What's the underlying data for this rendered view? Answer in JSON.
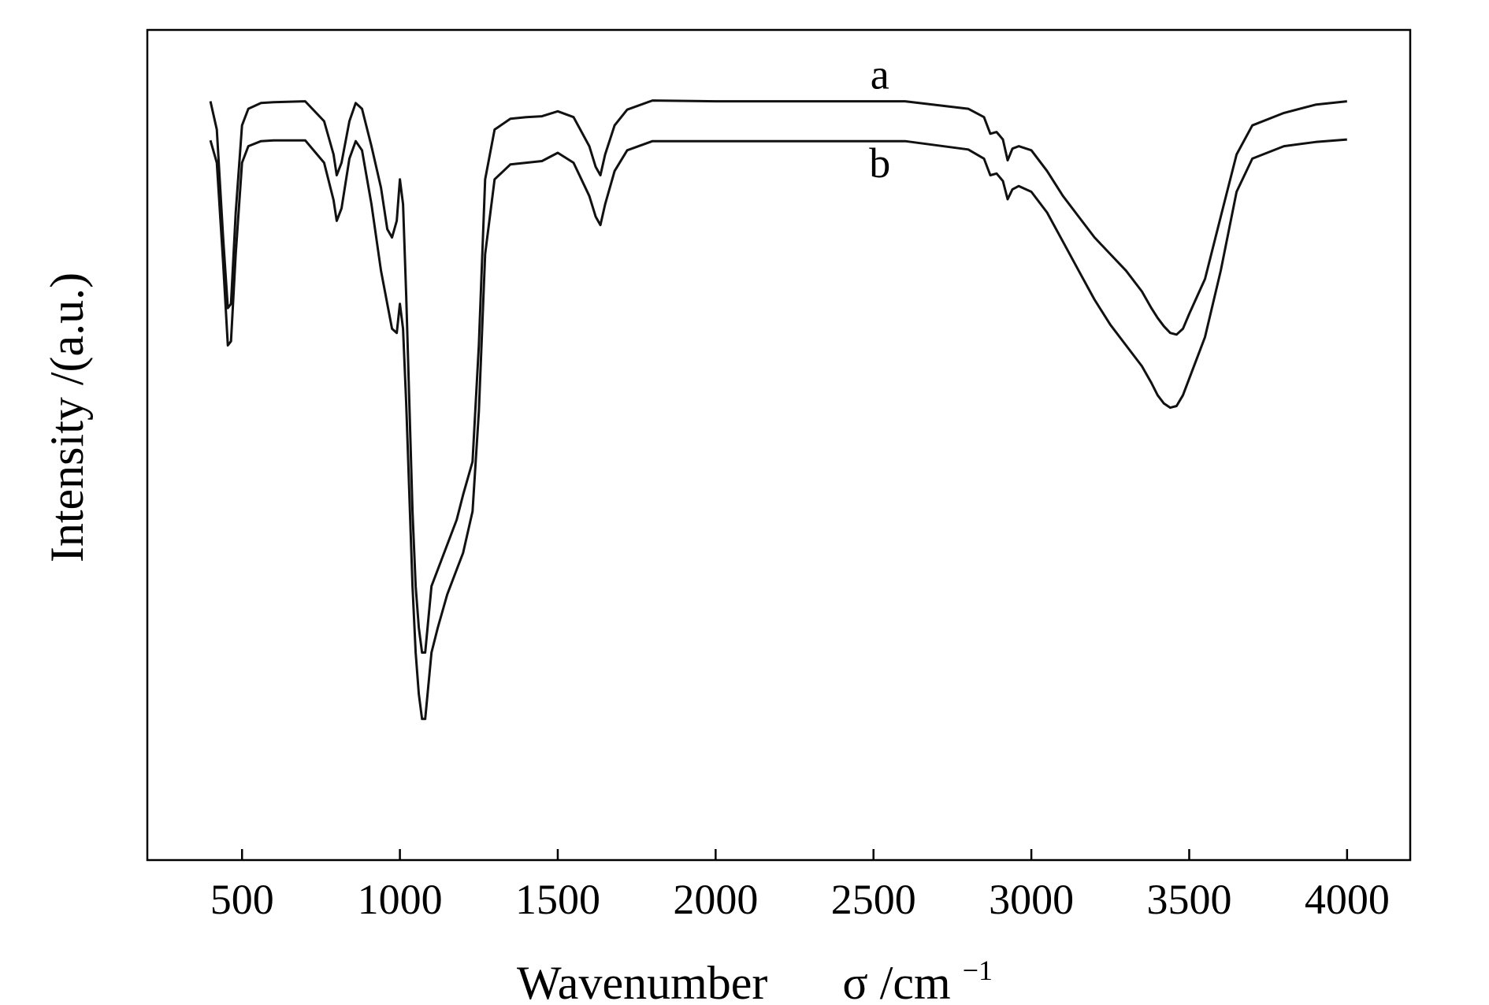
{
  "chart_data": {
    "type": "line",
    "title": "",
    "xlabel": "Wavenumber",
    "xlabel_symbol": "σ",
    "xlabel_unit": "/cm",
    "xlabel_unit_exponent": "−1",
    "ylabel": "Intensity /(a.u.)",
    "xlim": [
      200,
      4200
    ],
    "ylim": [
      0,
      100
    ],
    "xticks": [
      500,
      1000,
      1500,
      2000,
      2500,
      3000,
      3500,
      4000
    ],
    "yticks_shown": false,
    "grid": false,
    "legend": "none",
    "series": [
      {
        "name": "a",
        "x": [
          400,
          420,
          440,
          455,
          465,
          480,
          500,
          520,
          560,
          600,
          700,
          760,
          790,
          800,
          815,
          840,
          860,
          880,
          910,
          940,
          960,
          975,
          990,
          1000,
          1010,
          1020,
          1030,
          1040,
          1050,
          1060,
          1070,
          1080,
          1090,
          1100,
          1120,
          1150,
          1180,
          1200,
          1230,
          1250,
          1270,
          1300,
          1350,
          1400,
          1450,
          1500,
          1550,
          1600,
          1620,
          1635,
          1650,
          1680,
          1720,
          1800,
          2000,
          2200,
          2400,
          2600,
          2800,
          2850,
          2870,
          2890,
          2910,
          2925,
          2940,
          2960,
          3000,
          3050,
          3100,
          3150,
          3200,
          3250,
          3300,
          3350,
          3380,
          3400,
          3420,
          3440,
          3460,
          3480,
          3500,
          3550,
          3600,
          3650,
          3700,
          3800,
          3900,
          4000
        ],
        "y": [
          91.4,
          88,
          75,
          66.5,
          67,
          78,
          88.5,
          90.5,
          91.2,
          91.3,
          91.4,
          89,
          85,
          82.5,
          84,
          89,
          91.2,
          90.5,
          86,
          81,
          76,
          75,
          77,
          82,
          79,
          68,
          55,
          42,
          33,
          28,
          25,
          25,
          29,
          33,
          35,
          38,
          41,
          44,
          48,
          62,
          82,
          88,
          89.3,
          89.5,
          89.6,
          90.2,
          89.5,
          86,
          83.5,
          82.5,
          85,
          88.5,
          90.4,
          91.5,
          91.4,
          91.4,
          91.4,
          91.4,
          90.5,
          89.5,
          87.5,
          87.7,
          86.8,
          84.3,
          85.7,
          86,
          85.5,
          83,
          80,
          77.5,
          75,
          73,
          71,
          68.5,
          66.5,
          65.3,
          64.3,
          63.5,
          63.3,
          64,
          65.8,
          70,
          77.5,
          85,
          88.5,
          90,
          91,
          91.4
        ]
      },
      {
        "name": "b",
        "x": [
          400,
          420,
          440,
          455,
          465,
          480,
          500,
          520,
          560,
          600,
          700,
          760,
          790,
          800,
          815,
          840,
          860,
          880,
          910,
          940,
          960,
          975,
          990,
          1000,
          1010,
          1020,
          1030,
          1040,
          1050,
          1060,
          1070,
          1080,
          1090,
          1100,
          1120,
          1150,
          1180,
          1200,
          1230,
          1250,
          1270,
          1300,
          1350,
          1400,
          1450,
          1500,
          1550,
          1600,
          1620,
          1635,
          1650,
          1680,
          1720,
          1800,
          2000,
          2200,
          2400,
          2600,
          2800,
          2850,
          2870,
          2890,
          2910,
          2925,
          2940,
          2960,
          3000,
          3050,
          3100,
          3150,
          3200,
          3250,
          3300,
          3350,
          3380,
          3400,
          3420,
          3440,
          3460,
          3480,
          3500,
          3550,
          3600,
          3650,
          3700,
          3800,
          3900,
          4000
        ],
        "y": [
          86.7,
          84,
          72,
          62,
          62.5,
          73,
          84,
          86,
          86.6,
          86.7,
          86.7,
          84,
          79.5,
          77,
          78.5,
          84.5,
          86.6,
          85.5,
          79,
          71,
          67,
          64,
          63.5,
          67,
          64,
          55,
          44,
          33,
          25,
          20,
          17,
          17,
          21,
          25,
          28,
          32,
          35,
          37,
          42,
          54,
          73,
          82,
          83.8,
          84,
          84.2,
          85.2,
          84,
          80,
          77.5,
          76.5,
          79,
          83,
          85.5,
          86.6,
          86.6,
          86.6,
          86.6,
          86.6,
          85.6,
          84.5,
          82.5,
          82.7,
          81.8,
          79.6,
          80.8,
          81.2,
          80.5,
          78,
          74.5,
          71,
          67.5,
          64.5,
          62,
          59.5,
          57.5,
          56,
          55,
          54.5,
          54.7,
          56,
          58,
          63,
          71,
          80.5,
          84.5,
          86,
          86.5,
          86.8
        ]
      }
    ]
  }
}
